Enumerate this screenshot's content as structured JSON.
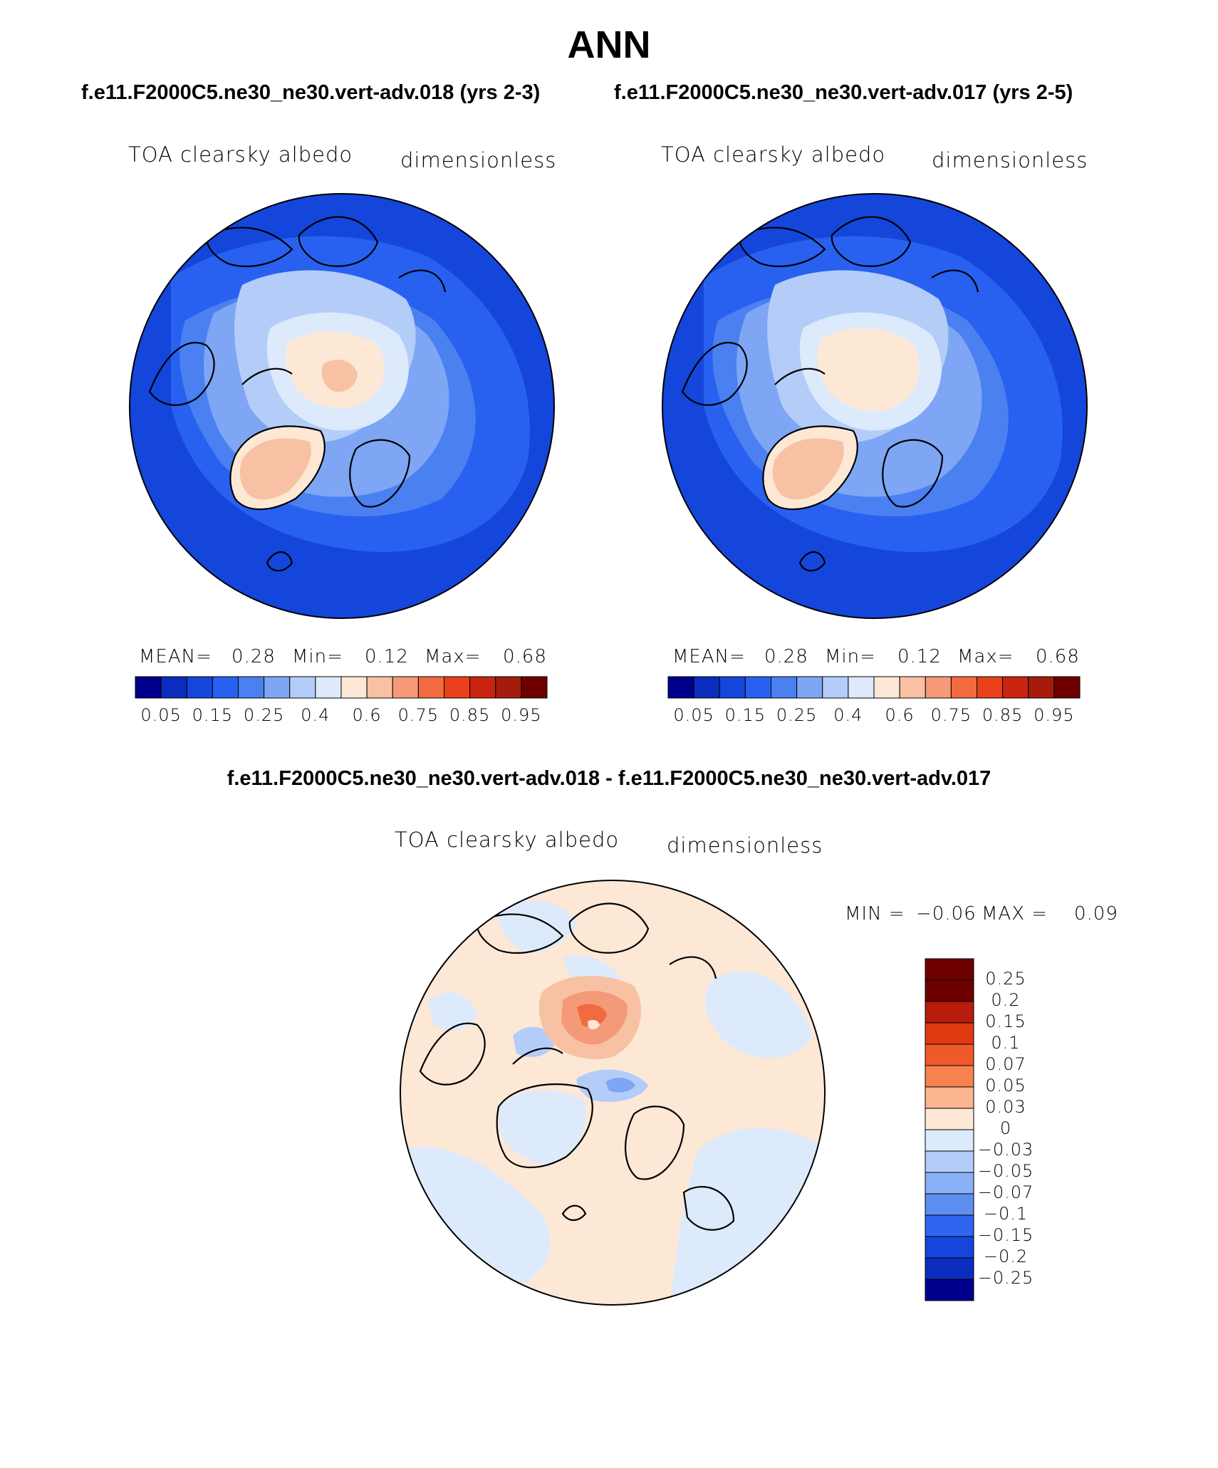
{
  "title": "ANN",
  "panels": [
    {
      "case_title": "f.e11.F2000C5.ne30_ne30.vert-adv.018 (yrs 2-3)",
      "variable": "TOA clearsky albedo",
      "units": "dimensionless",
      "stats": {
        "mean_label": "MEAN=",
        "mean": "0.28",
        "min_label": "Min=",
        "min": "0.12",
        "max_label": "Max=",
        "max": "0.68"
      },
      "colorbar_ticks": [
        "0.05",
        "0.15",
        "0.25",
        "0.4",
        "0.6",
        "0.75",
        "0.85",
        "0.95"
      ]
    },
    {
      "case_title": "f.e11.F2000C5.ne30_ne30.vert-adv.017 (yrs 2-5)",
      "variable": "TOA clearsky albedo",
      "units": "dimensionless",
      "stats": {
        "mean_label": "MEAN=",
        "mean": "0.28",
        "min_label": "Min=",
        "min": "0.12",
        "max_label": "Max=",
        "max": "0.68"
      },
      "colorbar_ticks": [
        "0.05",
        "0.15",
        "0.25",
        "0.4",
        "0.6",
        "0.75",
        "0.85",
        "0.95"
      ]
    }
  ],
  "difference": {
    "title": "f.e11.F2000C5.ne30_ne30.vert-adv.018 - f.e11.F2000C5.ne30_ne30.vert-adv.017",
    "variable": "TOA clearsky albedo",
    "units": "dimensionless",
    "stats": {
      "min_label": "MIN =",
      "min": "−0.06",
      "max_label": "MAX =",
      "max": "0.09"
    },
    "colorbar_ticks": [
      "0.25",
      "0.2",
      "0.15",
      "0.1",
      "0.07",
      "0.05",
      "0.03",
      "0",
      "−0.03",
      "−0.05",
      "−0.07",
      "−0.1",
      "−0.15",
      "−0.2",
      "−0.25"
    ]
  },
  "colors": {
    "abs_scale": [
      "#00008c",
      "#0a2dbe",
      "#1446dc",
      "#2861f0",
      "#4a80f0",
      "#7ea6f5",
      "#b4cdf8",
      "#dceafc",
      "#fde8d6",
      "#f9c1a3",
      "#f49a78",
      "#f26a3f",
      "#e8401a",
      "#c92410",
      "#a61c0c",
      "#6e0000"
    ],
    "diff_scale": [
      "#6e0000",
      "#b71c0c",
      "#e03a10",
      "#f05a2a",
      "#f7824f",
      "#fcb58f",
      "#fde8d6",
      "#dceafc",
      "#b4cdf8",
      "#8ab0f5",
      "#5e8ef0",
      "#2f66f0",
      "#1446dc",
      "#0a2dbe",
      "#00008c"
    ]
  }
}
